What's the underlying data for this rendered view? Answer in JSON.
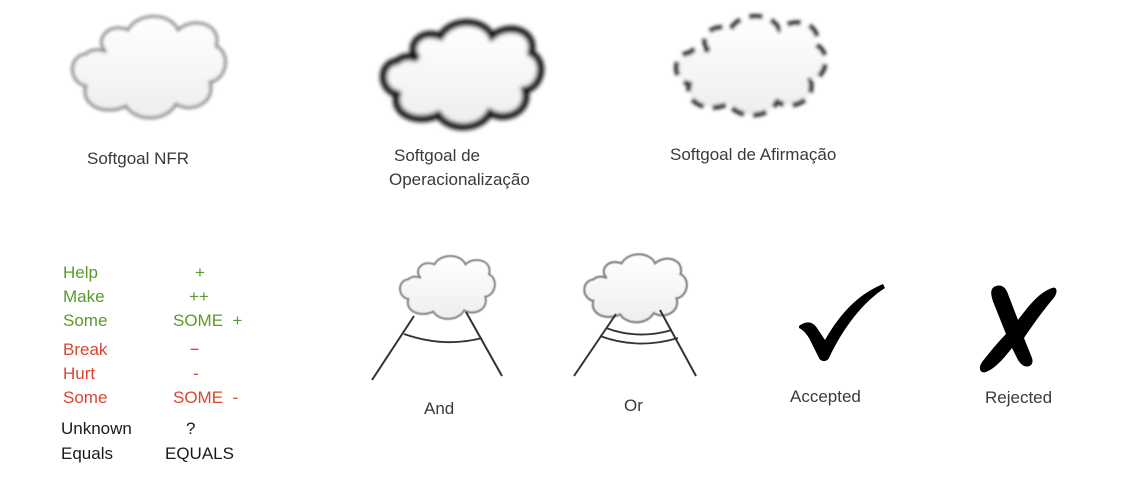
{
  "softgoals": {
    "nfr_label": "Softgoal NFR",
    "operationalization_label_line1": "Softgoal de",
    "operationalization_label_line2": "Operacionalização",
    "claim_label": "Softgoal de Afirmação"
  },
  "contributions": [
    {
      "name": "Help",
      "symbol": "+",
      "color": "#5a9a2a"
    },
    {
      "name": "Make",
      "symbol": "++",
      "color": "#5a9a2a"
    },
    {
      "name": "Some",
      "symbol": "SOME  +",
      "color": "#5a9a2a"
    },
    {
      "name": "Break",
      "symbol": "--",
      "color": "#d9452e"
    },
    {
      "name": "Hurt",
      "symbol": "-",
      "color": "#d9452e"
    },
    {
      "name": "Some",
      "symbol": "SOME  -",
      "color": "#d9452e"
    },
    {
      "name": "Unknown",
      "symbol": "?",
      "color": "#1a1a1a"
    },
    {
      "name": "Equals",
      "symbol": "EQUALS",
      "color": "#1a1a1a"
    }
  ],
  "decompositions": {
    "and_label": "And",
    "or_label": "Or"
  },
  "labels": {
    "accepted_label": "Accepted",
    "rejected_label": "Rejected"
  }
}
